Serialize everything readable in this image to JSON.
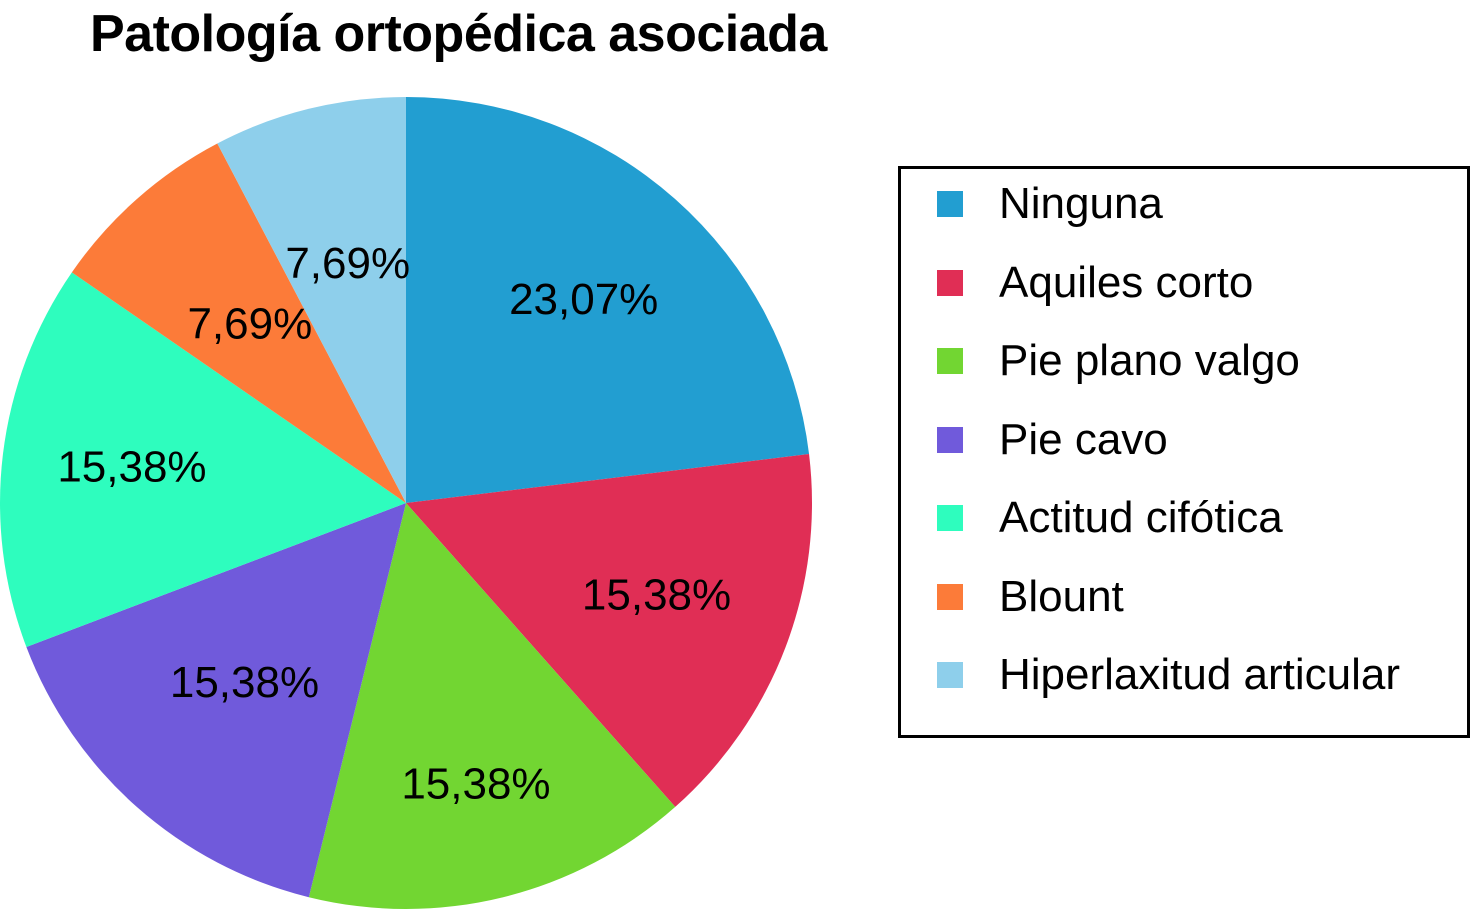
{
  "chart_data": {
    "type": "pie",
    "title": "Patología ortopédica asociada",
    "slices": [
      {
        "label": "Ninguna",
        "value": 23.07,
        "value_label": "23,07%",
        "color": "#229ED1"
      },
      {
        "label": "Aquiles corto",
        "value": 15.38,
        "value_label": "15,38%",
        "color": "#E02E55"
      },
      {
        "label": "Pie plano valgo",
        "value": 15.38,
        "value_label": "15,38%",
        "color": "#72D632"
      },
      {
        "label": "Pie cavo",
        "value": 15.38,
        "value_label": "15,38%",
        "color": "#705ADB"
      },
      {
        "label": "Actitud cifótica",
        "value": 15.38,
        "value_label": "15,38%",
        "color": "#2EFDBE"
      },
      {
        "label": "Blount",
        "value": 7.69,
        "value_label": "7,69%",
        "color": "#FC7B39"
      },
      {
        "label": "Hiperlaxitud articular",
        "value": 7.69,
        "value_label": "7,69%",
        "color": "#8ECFEB"
      }
    ],
    "start": "12 o'clock",
    "direction": "clockwise",
    "legend_position": "right"
  }
}
